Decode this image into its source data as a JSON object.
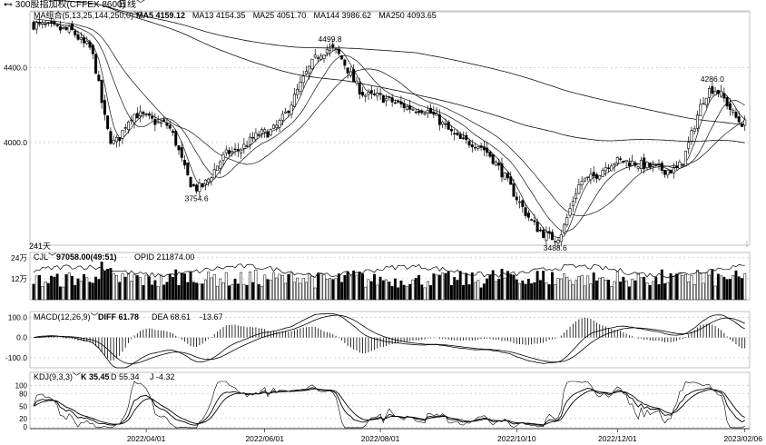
{
  "header": {
    "instrument": "300股指加权(CFFEX 8600)",
    "period": "日线"
  },
  "main": {
    "indicator": "MA组合(5,13,25,144,250,0)",
    "ma": [
      {
        "label": "MA5",
        "value": "4159.12",
        "color": "#000000"
      },
      {
        "label": "MA13",
        "value": "4154.35",
        "color": "#000000"
      },
      {
        "label": "MA25",
        "value": "4051.70",
        "color": "#000000"
      },
      {
        "label": "MA144",
        "value": "3986.62",
        "color": "#000000"
      },
      {
        "label": "MA250",
        "value": "4093.65",
        "color": "#000000"
      }
    ],
    "y_ticks": [
      "4400.0",
      "4000.0"
    ],
    "annotations": [
      "4499.8",
      "3754.6",
      "3488.6",
      "4286.0"
    ],
    "bar_count_label": "241天"
  },
  "volume": {
    "label": "CJL",
    "values": "97058.00(49:51)",
    "opid_label": "OPID",
    "opid": "211874.00",
    "y_ticks": [
      "24万",
      "12万"
    ]
  },
  "macd": {
    "label": "MACD(12,26,9)",
    "diff_label": "DIFF",
    "diff": "61.78",
    "dea_label": "DEA",
    "dea": "68.61",
    "macd": "-13.67",
    "y_ticks": [
      "100.0",
      "0.0",
      "-100.0"
    ]
  },
  "kdj": {
    "label": "KDJ(9,3,3)",
    "k_label": "K",
    "k": "35.45",
    "d_label": "D",
    "d": "55.34",
    "j_label": "J",
    "j": "-4.32",
    "y_ticks": [
      "100",
      "80",
      "50",
      "20",
      "0"
    ]
  },
  "x_axis": {
    "labels": [
      "2022/04/01",
      "2022/06/01",
      "2022/08/01",
      "2022/10/10",
      "2022/12/01",
      "2023/02/06"
    ]
  },
  "chart_data": {
    "type": "candlestick",
    "x_range": [
      "2022/02",
      "2023/02/06"
    ],
    "y_range_price": [
      3450,
      4650
    ],
    "price_path_keypoints": [
      {
        "date": "2022/02",
        "close": 4630
      },
      {
        "date": "2022/02/20",
        "close": 4600
      },
      {
        "date": "2022/03/01",
        "close": 4520
      },
      {
        "date": "2022/03/15",
        "close": 4000
      },
      {
        "date": "2022/03/25",
        "close": 4150
      },
      {
        "date": "2022/04/10",
        "close": 4100
      },
      {
        "date": "2022/04/27",
        "low": 3754.6
      },
      {
        "date": "2022/05/15",
        "close": 3950
      },
      {
        "date": "2022/06/01",
        "close": 4050
      },
      {
        "date": "2022/07/05",
        "high": 4499.8
      },
      {
        "date": "2022/07/25",
        "close": 4250
      },
      {
        "date": "2022/08/20",
        "close": 4180
      },
      {
        "date": "2022/09/15",
        "close": 4000
      },
      {
        "date": "2022/10/31",
        "low": 3488.6
      },
      {
        "date": "2022/11/15",
        "close": 3800
      },
      {
        "date": "2022/12/01",
        "close": 3900
      },
      {
        "date": "2022/12/31",
        "close": 3850
      },
      {
        "date": "2023/01/20",
        "high": 4286.0
      },
      {
        "date": "2023/02/06",
        "close": 4100
      }
    ],
    "series": [
      {
        "name": "MA5",
        "last": 4159.12
      },
      {
        "name": "MA13",
        "last": 4154.35
      },
      {
        "name": "MA25",
        "last": 4051.7
      },
      {
        "name": "MA144",
        "last": 3986.62
      },
      {
        "name": "MA250",
        "last": 4093.65
      }
    ],
    "volume_range": [
      0,
      260000
    ],
    "macd_range": [
      -150,
      120
    ],
    "kdj_range": [
      0,
      110
    ]
  }
}
